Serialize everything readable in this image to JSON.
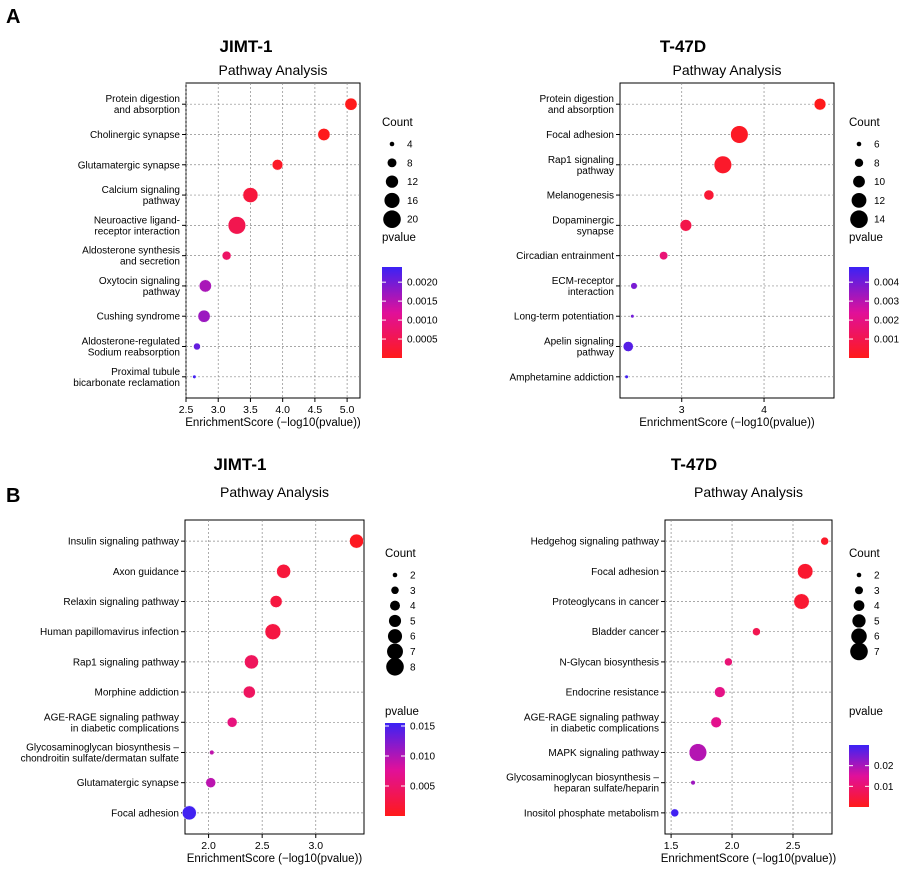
{
  "panels": [
    {
      "label": "A"
    },
    {
      "label": "B"
    }
  ],
  "colors": {
    "low_pvalue": "#ff1a1a",
    "mid_pvalue": "#e0109a",
    "high_pvalue": "#3b22f5",
    "grid": "#8a8a8a",
    "dot_outline": "#ffffff"
  },
  "chart_data": [
    {
      "type": "scatter",
      "panel": "A",
      "cell_title": "JIMT-1",
      "title": "Pathway Analysis",
      "xlabel": "EnrichmentScore (−log10(pvalue))",
      "xlim": [
        2.5,
        5.2
      ],
      "xticks": [
        2.5,
        3.0,
        3.5,
        4.0,
        4.5,
        5.0
      ],
      "xtick_labels": [
        "2.5",
        "3.0",
        "3.5",
        "4.0",
        "4.5",
        "5.0"
      ],
      "categories": [
        [
          "Protein digestion",
          "and absorption"
        ],
        [
          "Cholinergic synapse"
        ],
        [
          "Glutamatergic synapse"
        ],
        [
          "Calcium signaling",
          "pathway"
        ],
        [
          "Neuroactive ligand-",
          "receptor interaction"
        ],
        [
          "Aldosterone synthesis",
          "and secretion"
        ],
        [
          "Oxytocin signaling",
          "pathway"
        ],
        [
          "Cushing syndrome"
        ],
        [
          "Aldosterone-regulated",
          "Sodium reabsorption"
        ],
        [
          "Proximal tubule",
          "bicarbonate reclamation"
        ]
      ],
      "x": [
        5.06,
        4.64,
        3.92,
        3.5,
        3.29,
        3.13,
        2.8,
        2.78,
        2.67,
        2.63
      ],
      "count": [
        12,
        12,
        10,
        16,
        20,
        8,
        12,
        12,
        6,
        3
      ],
      "pvalue": [
        1e-05,
        2e-05,
        0.00012,
        0.00032,
        0.0005,
        0.0007,
        0.0016,
        0.0017,
        0.0021,
        0.00235
      ],
      "size_legend": {
        "title": "Count",
        "values": [
          4,
          8,
          12,
          16,
          20
        ]
      },
      "color_legend": {
        "title": "pvalue",
        "min": 0.0,
        "max": 0.0024,
        "ticks": [
          0.0005,
          0.001,
          0.0015,
          0.002
        ],
        "tick_labels": [
          "0.0005",
          "0.0010",
          "0.0015",
          "0.0020"
        ]
      }
    },
    {
      "type": "scatter",
      "panel": "A",
      "cell_title": "T-47D",
      "title": "Pathway Analysis",
      "xlabel": "EnrichmentScore (−log10(pvalue))",
      "xlim": [
        2.25,
        4.85
      ],
      "xticks": [
        3,
        4
      ],
      "xtick_labels": [
        "3",
        "4"
      ],
      "categories": [
        [
          "Protein digestion",
          "and absorption"
        ],
        [
          "Focal adhesion"
        ],
        [
          "Rap1 signaling",
          "pathway"
        ],
        [
          "Melanogenesis"
        ],
        [
          "Dopaminergic",
          "synapse"
        ],
        [
          "Circadian entrainment"
        ],
        [
          "ECM-receptor",
          "interaction"
        ],
        [
          "Long-term potentiation"
        ],
        [
          "Apelin signaling",
          "pathway"
        ],
        [
          "Amphetamine addiction"
        ]
      ],
      "x": [
        4.68,
        3.7,
        3.5,
        3.33,
        3.05,
        2.78,
        2.42,
        2.4,
        2.35,
        2.33
      ],
      "count": [
        10,
        14,
        14,
        9,
        10,
        8,
        7,
        5,
        9,
        5
      ],
      "pvalue": [
        2e-05,
        0.0002,
        0.00032,
        0.0005,
        0.0009,
        0.0017,
        0.0039,
        0.004,
        0.0044,
        0.0047
      ],
      "size_legend": {
        "title": "Count",
        "values": [
          6,
          8,
          10,
          12,
          14
        ]
      },
      "color_legend": {
        "title": "pvalue",
        "min": 0.0,
        "max": 0.0048,
        "ticks": [
          0.001,
          0.002,
          0.003,
          0.004
        ],
        "tick_labels": [
          "0.001",
          "0.002",
          "0.003",
          "0.004"
        ]
      }
    },
    {
      "type": "scatter",
      "panel": "B",
      "cell_title": "JIMT-1",
      "title": "Pathway Analysis",
      "xlabel": "EnrichmentScore (−log10(pvalue))",
      "xlim": [
        1.78,
        3.45
      ],
      "xticks": [
        2.0,
        2.5,
        3.0
      ],
      "xtick_labels": [
        "2.0",
        "2.5",
        "3.0"
      ],
      "categories": [
        [
          "Insulin signaling pathway"
        ],
        [
          "Axon guidance"
        ],
        [
          "Relaxin signaling pathway"
        ],
        [
          "Human papillomavirus infection"
        ],
        [
          "Rap1 signaling pathway"
        ],
        [
          "Morphine addiction"
        ],
        [
          "AGE-RAGE signaling pathway",
          "in diabetic complications"
        ],
        [
          "Glycosaminoglycan biosynthesis –",
          "chondroitin sulfate/dermatan sulfate"
        ],
        [
          "Glutamatergic synapse"
        ],
        [
          "Focal adhesion"
        ]
      ],
      "x": [
        3.38,
        2.7,
        2.63,
        2.6,
        2.4,
        2.38,
        2.22,
        2.03,
        2.02,
        1.82
      ],
      "count": [
        6,
        6,
        5,
        7,
        6,
        5,
        4,
        2,
        4,
        6
      ],
      "pvalue": [
        0.0004,
        0.002,
        0.0023,
        0.0025,
        0.004,
        0.0042,
        0.006,
        0.0093,
        0.0095,
        0.0152
      ],
      "size_legend": {
        "title": "Count",
        "values": [
          2,
          3,
          4,
          5,
          6,
          7,
          8
        ]
      },
      "color_legend": {
        "title": "pvalue",
        "min": 0.0,
        "max": 0.0155,
        "ticks": [
          0.005,
          0.01,
          0.015
        ],
        "tick_labels": [
          "0.005",
          "0.010",
          "0.015"
        ]
      }
    },
    {
      "type": "scatter",
      "panel": "B",
      "cell_title": "T-47D",
      "title": "Pathway Analysis",
      "xlabel": "EnrichmentScore (−log10(pvalue))",
      "xlim": [
        1.45,
        2.82
      ],
      "xticks": [
        1.5,
        2.0,
        2.5
      ],
      "xtick_labels": [
        "1.5",
        "2.0",
        "2.5"
      ],
      "categories": [
        [
          "Hedgehog signaling pathway"
        ],
        [
          "Focal adhesion"
        ],
        [
          "Proteoglycans in cancer"
        ],
        [
          "Bladder cancer"
        ],
        [
          "N-Glycan biosynthesis"
        ],
        [
          "Endocrine resistance"
        ],
        [
          "AGE-RAGE signaling pathway",
          "in diabetic complications"
        ],
        [
          "MAPK signaling pathway"
        ],
        [
          "Glycosaminoglycan biosynthesis –",
          "heparan sulfate/heparin"
        ],
        [
          "Inositol phosphate metabolism"
        ]
      ],
      "x": [
        2.76,
        2.6,
        2.57,
        2.2,
        1.97,
        1.9,
        1.87,
        1.72,
        1.68,
        1.53
      ],
      "count": [
        3,
        6,
        6,
        3,
        3,
        4,
        4,
        7,
        2,
        3
      ],
      "pvalue": [
        0.0017,
        0.0025,
        0.0027,
        0.0063,
        0.0107,
        0.0126,
        0.0135,
        0.019,
        0.021,
        0.0295
      ],
      "size_legend": {
        "title": "Count",
        "values": [
          2,
          3,
          4,
          5,
          6,
          7
        ]
      },
      "color_legend": {
        "title": "pvalue",
        "min": 0.0,
        "max": 0.03,
        "ticks": [
          0.01,
          0.02
        ],
        "tick_labels": [
          "0.01",
          "0.02"
        ]
      }
    }
  ]
}
